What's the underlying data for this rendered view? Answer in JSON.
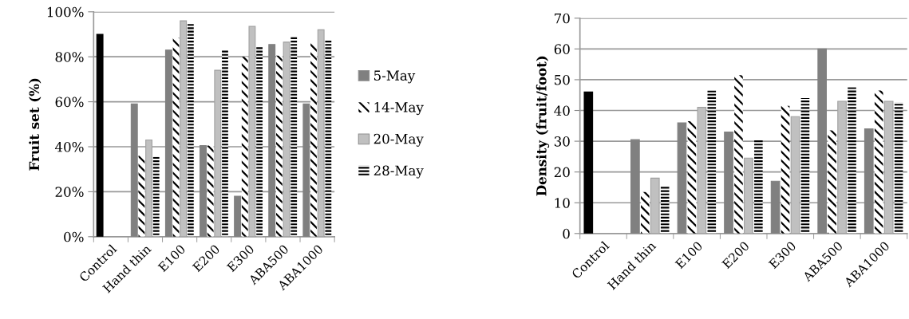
{
  "chart_data": [
    {
      "type": "bar",
      "ylabel": "Fruit set (%)",
      "categories": [
        "Control",
        "Hand thin",
        "E100",
        "E200",
        "E300",
        "ABA500",
        "ABA1000"
      ],
      "ylim": [
        0,
        100
      ],
      "yticks": [
        {
          "value": 0,
          "label": "0%"
        },
        {
          "value": 20,
          "label": "20%"
        },
        {
          "value": 40,
          "label": "40%"
        },
        {
          "value": 60,
          "label": "60%"
        },
        {
          "value": 80,
          "label": "80%"
        },
        {
          "value": 100,
          "label": "100%"
        }
      ],
      "grid": "y",
      "legend": "right",
      "series": [
        {
          "name": "5-May",
          "color": "#808080",
          "colors": [
            "#000000",
            "#808080",
            "#808080",
            "#808080",
            "#808080",
            "#808080",
            "#808080"
          ],
          "values": [
            90,
            59,
            83,
            40.5,
            18,
            85.5,
            59
          ]
        },
        {
          "name": "14-May",
          "color": "#000000",
          "values": [
            null,
            36,
            88.5,
            40.5,
            80,
            80.5,
            86
          ]
        },
        {
          "name": "20-May",
          "color": "#c0c0c0",
          "values": [
            null,
            43,
            96,
            74,
            93.5,
            86.5,
            92
          ]
        },
        {
          "name": "28-May",
          "color": "#000000",
          "values": [
            null,
            35.5,
            95,
            83,
            84.5,
            89,
            87.5
          ]
        }
      ]
    },
    {
      "type": "bar",
      "ylabel": "Density (fruit/foot)",
      "categories": [
        "Control",
        "Hand thin",
        "E100",
        "E200",
        "E300",
        "ABA500",
        "ABA1000"
      ],
      "ylim": [
        0,
        70
      ],
      "yticks": [
        0,
        10,
        20,
        30,
        40,
        50,
        60,
        70
      ],
      "grid": "y",
      "legend": false,
      "series": [
        {
          "color": "#808080",
          "colors": [
            "#000000",
            "#808080",
            "#808080",
            "#808080",
            "#808080",
            "#808080",
            "#808080"
          ],
          "values": [
            46,
            30.5,
            36,
            33,
            17,
            60,
            34
          ]
        },
        {
          "color": "#000000",
          "values": [
            null,
            13.5,
            36.5,
            51.5,
            41.5,
            33.5,
            46.5
          ]
        },
        {
          "color": "#c0c0c0",
          "values": [
            null,
            18,
            41,
            24.5,
            38,
            43,
            43
          ]
        },
        {
          "color": "#000000",
          "values": [
            null,
            15.5,
            46.5,
            30.5,
            44,
            47.5,
            42.5
          ]
        }
      ]
    }
  ]
}
